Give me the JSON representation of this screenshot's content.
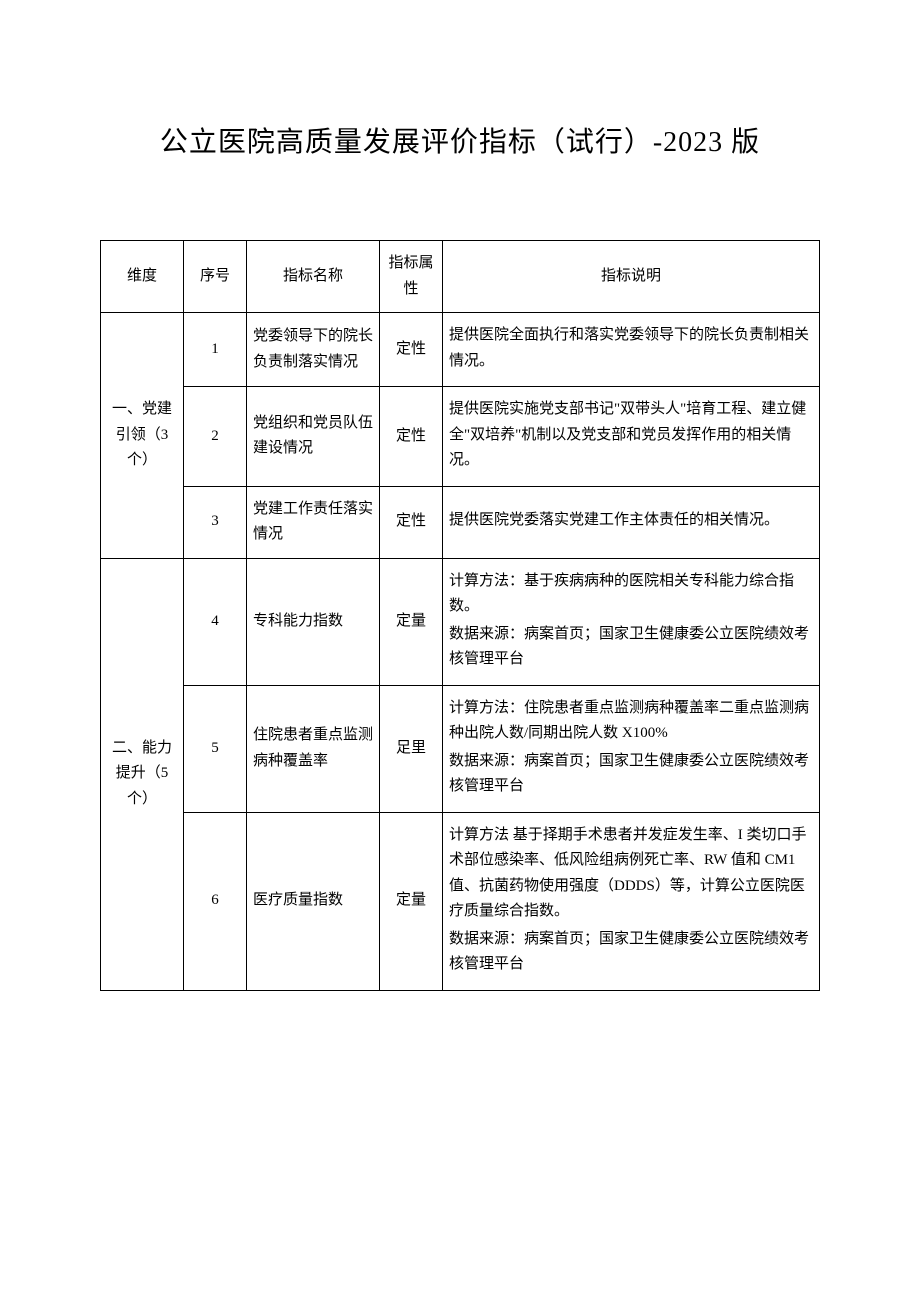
{
  "title": "公立医院高质量发展评价指标（试行）-2023 版",
  "columns": [
    "维度",
    "序号",
    "指标名称",
    "指标属性",
    "指标说明"
  ],
  "rows": [
    {
      "dim": "一、党建引领（3 个）",
      "dim_rowspan": 3,
      "seq": "1",
      "name": "党委领导下的院长负责制落实情况",
      "attr": "定性",
      "desc": "提供医院全面执行和落实党委领导下的院长负责制相关情况。"
    },
    {
      "seq": "2",
      "name": "党组织和党员队伍建设情况",
      "attr": "定性",
      "desc": "提供医院实施党支部书记\"双带头人\"培育工程、建立健全\"双培养\"机制以及党支部和党员发挥作用的相关情况。"
    },
    {
      "seq": "3",
      "name": "党建工作责任落实情况",
      "attr": "定性",
      "desc": "提供医院党委落实党建工作主体责任的相关情况。"
    },
    {
      "dim": "二、能力提升（5个）",
      "dim_rowspan": 3,
      "seq": "4",
      "name": "专科能力指数",
      "attr": "定量",
      "desc": "计算方法：基于疾病病种的医院相关专科能力综合指数。\n数据来源：病案首页；国家卫生健康委公立医院绩效考核管理平台"
    },
    {
      "seq": "5",
      "name": "住院患者重点监测病种覆盖率",
      "attr": "足里",
      "desc": "计算方法：住院患者重点监测病种覆盖率二重点监测病种出院人数/同期出院人数 X100%\n数据来源：病案首页；国家卫生健康委公立医院绩效考核管理平台"
    },
    {
      "seq": "6",
      "name": "医疗质量指数",
      "attr": "定量",
      "desc": "计算方法 基于择期手术患者并发症发生率、I 类切口手术部位感染率、低风险组病例死亡率、RW 值和 CM1 值、抗菌药物使用强度（DDDS）等，计算公立医院医疗质量综合指数。\n数据来源：病案首页；国家卫生健康委公立医院绩效考核管理平台"
    }
  ]
}
